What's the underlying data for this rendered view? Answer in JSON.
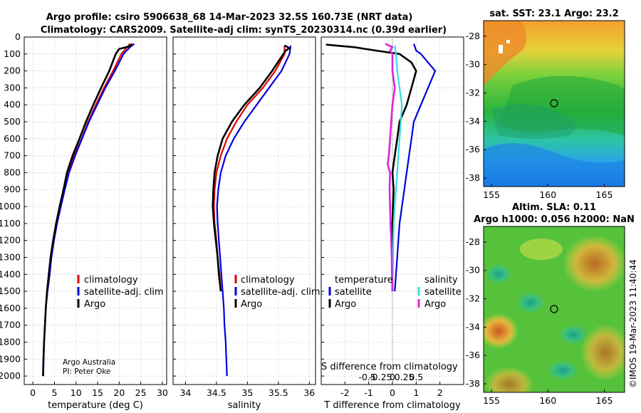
{
  "chart_data": {
    "title_line1": "Argo profile: csiro 5906638_68 14-Mar-2023 32.5S 160.73E (NRT data)",
    "title_line2": "Climatology: CARS2009. Satellite-adj clim: synTS_20230314.nc (0.39d earlier)",
    "depth_ticks": [
      "0",
      "100",
      "200",
      "300",
      "400",
      "500",
      "600",
      "700",
      "800",
      "900",
      "1000",
      "1100",
      "1200",
      "1300",
      "1400",
      "1500",
      "1600",
      "1700",
      "1800",
      "1900",
      "2000"
    ],
    "depth_range": [
      0,
      2050
    ],
    "panels": [
      {
        "name": "temperature",
        "type": "line",
        "xlabel": "temperature (deg C)",
        "xlim": [
          -2,
          31
        ],
        "xticks": [
          "0",
          "5",
          "10",
          "15",
          "20",
          "25",
          "30"
        ],
        "xtick_values": [
          0,
          5,
          10,
          15,
          20,
          25,
          30
        ],
        "series": [
          {
            "name": "climatology",
            "color": "#dd0000",
            "depth": [
              40,
              100,
              200,
              300,
              400,
              500,
              600,
              700,
              800,
              900,
              1000,
              1100,
              1200,
              1300,
              1400,
              1500
            ],
            "values": [
              22.5,
              20.5,
              18.6,
              16.5,
              14.6,
              12.8,
              11.3,
              9.6,
              8.2,
              7.2,
              6.3,
              5.5,
              4.8,
              4.2,
              3.8,
              3.4
            ]
          },
          {
            "name": "satellite-adj. clim.",
            "color": "#0000dd",
            "depth": [
              40,
              60,
              100,
              200,
              300,
              400,
              500,
              600,
              700,
              800,
              900,
              1000,
              1100,
              1200,
              1300,
              1400,
              1500,
              1600,
              1700,
              1800,
              1900,
              2000
            ],
            "values": [
              23.5,
              22.5,
              21,
              19,
              16.8,
              14.9,
              13,
              11.4,
              9.8,
              8.4,
              7.4,
              6.5,
              5.6,
              4.9,
              4.3,
              3.9,
              3.4,
              3,
              2.8,
              2.6,
              2.5,
              2.4
            ]
          },
          {
            "name": "Argo",
            "color": "#000000",
            "depth": [
              40,
              55,
              70,
              100,
              200,
              300,
              400,
              500,
              600,
              700,
              800,
              900,
              1000,
              1100,
              1200,
              1300,
              1400,
              1500,
              1600,
              1700,
              1800,
              1900,
              2000
            ],
            "values": [
              23,
              22.4,
              20,
              19.2,
              17.7,
              15.8,
              14,
              12.3,
              10.8,
              9.2,
              7.9,
              7.1,
              6.2,
              5.4,
              4.7,
              4.1,
              3.7,
              3.3,
              3,
              2.8,
              2.6,
              2.45,
              2.35
            ]
          }
        ],
        "legend": [
          "climatology",
          "satellite-adj. clim",
          "Argo"
        ],
        "notes": [
          "Argo Australia",
          "PI: Peter Oke"
        ]
      },
      {
        "name": "salinity",
        "type": "line",
        "xlabel": "salinity",
        "xlim": [
          33.8,
          36.1
        ],
        "xticks": [
          "34",
          "34.5",
          "35",
          "35.5",
          "36"
        ],
        "xtick_values": [
          34,
          34.5,
          35,
          35.5,
          36
        ],
        "series": [
          {
            "name": "climatology",
            "color": "#dd0000",
            "depth": [
              50,
              100,
              200,
              300,
              400,
              500,
              600,
              700,
              800,
              900,
              1000,
              1100,
              1200,
              1300,
              1400,
              1500
            ],
            "values": [
              35.6,
              35.6,
              35.45,
              35.25,
              35.0,
              34.82,
              34.67,
              34.57,
              34.5,
              34.47,
              34.46,
              34.47,
              34.5,
              34.52,
              34.55,
              34.57
            ]
          },
          {
            "name": "satellite-adj. clim.",
            "color": "#0000dd",
            "depth": [
              50,
              100,
              200,
              300,
              400,
              500,
              600,
              700,
              800,
              900,
              1000,
              1100,
              1200,
              1300,
              1400,
              1500,
              1600,
              1700,
              1800,
              1900,
              2000
            ],
            "values": [
              35.7,
              35.68,
              35.55,
              35.35,
              35.15,
              34.95,
              34.78,
              34.65,
              34.57,
              34.53,
              34.51,
              34.52,
              34.54,
              34.56,
              34.58,
              34.6,
              34.62,
              34.63,
              34.65,
              34.66,
              34.67
            ]
          },
          {
            "name": "Argo",
            "color": "#000000",
            "depth": [
              50,
              65,
              80,
              100,
              200,
              300,
              400,
              500,
              600,
              700,
              800,
              900,
              1000,
              1100,
              1200,
              1300,
              1400,
              1500
            ],
            "values": [
              35.6,
              35.68,
              35.62,
              35.58,
              35.4,
              35.2,
              34.95,
              34.75,
              34.6,
              34.52,
              34.47,
              34.45,
              34.44,
              34.46,
              34.49,
              34.52,
              34.54,
              34.57
            ]
          }
        ],
        "legend": [
          "climatology",
          "satellite-adj. clim.",
          "Argo"
        ]
      },
      {
        "name": "difference",
        "type": "line",
        "xlabel": "T difference from climatology",
        "xlabel_top": "S difference from climatology",
        "xlim": [
          -3,
          3
        ],
        "xticks": [
          "-2",
          "-1",
          "0",
          "1",
          "2"
        ],
        "xtick_values": [
          -2,
          -1,
          0,
          1,
          2
        ],
        "xticks_top": [
          "-0.5",
          "-0.25",
          "0",
          "0.25",
          "0.5"
        ],
        "series": [
          {
            "name": "temperature satellite",
            "color": "#0000dd",
            "depth": [
              40,
              80,
              100,
              200,
              300,
              400,
              500,
              600,
              700,
              800,
              900,
              1000,
              1100,
              1200,
              1300,
              1400,
              1500
            ],
            "values": [
              0.9,
              1.0,
              1.2,
              1.8,
              1.5,
              1.2,
              0.9,
              0.8,
              0.7,
              0.6,
              0.5,
              0.4,
              0.3,
              0.25,
              0.2,
              0.15,
              0.1
            ]
          },
          {
            "name": "temperature Argo",
            "color": "#000000",
            "depth": [
              45,
              60,
              80,
              100,
              150,
              200,
              300,
              400,
              500,
              600,
              700,
              800,
              900,
              1000,
              1100,
              1200,
              1300,
              1400,
              1500
            ],
            "values": [
              -2.8,
              -1.6,
              -0.7,
              0.3,
              0.8,
              1.0,
              0.8,
              0.6,
              0.3,
              0.2,
              0.1,
              0,
              0.05,
              0.02,
              0,
              0,
              0,
              0,
              0
            ]
          },
          {
            "name": "salinity satellite",
            "color": "#33dddd",
            "depth": [
              50,
              100,
              200,
              300,
              400,
              500,
              600,
              700,
              800,
              900,
              1000,
              1100,
              1200,
              1300,
              1400,
              1500
            ],
            "values": [
              0.1,
              0.15,
              0.2,
              0.3,
              0.4,
              0.35,
              0.3,
              0.25,
              0.2,
              0.15,
              0.1,
              0.05,
              0.04,
              0.03,
              0.02,
              0.01
            ]
          },
          {
            "name": "salinity Argo",
            "color": "#dd22dd",
            "depth": [
              40,
              60,
              80,
              100,
              200,
              300,
              400,
              500,
              600,
              700,
              750,
              800,
              900,
              1000,
              1100,
              1200,
              1300,
              1400,
              1500
            ],
            "values": [
              -0.3,
              0.0,
              -0.1,
              0.0,
              0.0,
              0.1,
              0.0,
              -0.05,
              -0.1,
              -0.15,
              -0.2,
              -0.1,
              -0.12,
              -0.1,
              -0.08,
              -0.05,
              -0.03,
              -0.02,
              0
            ]
          }
        ],
        "legend_left_title": "temperature",
        "legend_right_title": "salinity",
        "legend_left": [
          "satellite",
          "Argo"
        ],
        "legend_right": [
          "satellite",
          "Argo"
        ]
      }
    ],
    "maps": [
      {
        "name": "sst-map",
        "type": "heatmap",
        "title": "sat. SST: 23.1 Argo: 23.2",
        "xticks": [
          "155",
          "160",
          "165"
        ],
        "yticks": [
          "-28",
          "-30",
          "-32",
          "-34",
          "-36",
          "-38"
        ]
      },
      {
        "name": "sla-map",
        "type": "heatmap",
        "title_line1": "Altim. SLA: 0.11",
        "title_line2": "Argo h1000: 0.056 h2000: NaN",
        "xticks": [
          "155",
          "160",
          "165"
        ],
        "yticks": [
          "-28",
          "-30",
          "-32",
          "-34",
          "-36",
          "-38"
        ]
      }
    ],
    "credit": "©IMOS 19-Mar-2023 11:40:44"
  }
}
